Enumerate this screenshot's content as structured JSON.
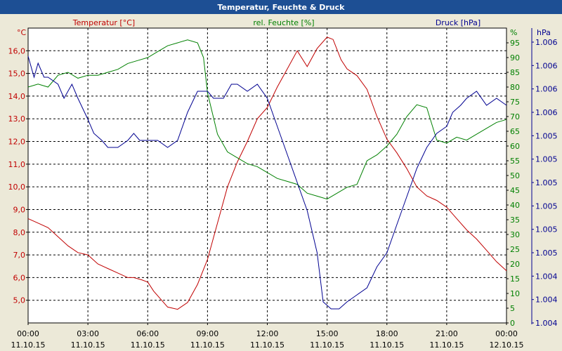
{
  "chart_data": {
    "type": "line",
    "title": "Temperatur, Feuchte & Druck",
    "colors": {
      "temperature": "#c00000",
      "humidity": "#008000",
      "pressure": "#000090",
      "title_bar": "#1d4f94",
      "title_text": "#ffffff",
      "grid": "#000000"
    },
    "grid": true,
    "x_ticks": [
      {
        "time": "00:00",
        "date": "11.10.15"
      },
      {
        "time": "03:00",
        "date": "11.10.15"
      },
      {
        "time": "06:00",
        "date": "11.10.15"
      },
      {
        "time": "09:00",
        "date": "11.10.15"
      },
      {
        "time": "12:00",
        "date": "11.10.15"
      },
      {
        "time": "15:00",
        "date": "11.10.15"
      },
      {
        "time": "18:00",
        "date": "11.10.15"
      },
      {
        "time": "21:00",
        "date": "11.10.15"
      },
      {
        "time": "00:00",
        "date": "12.10.15"
      }
    ],
    "x_range_hours": [
      0,
      24
    ],
    "axes": {
      "temperature": {
        "label": "Temperatur [°C]",
        "unit": "°C",
        "range": [
          4.0,
          17.0
        ],
        "ticks": [
          "16,0",
          "15,0",
          "14,0",
          "13,0",
          "12,0",
          "11,0",
          "10,0",
          "9,0",
          "8,0",
          "7,0",
          "6,0",
          "5,0"
        ],
        "tick_values": [
          16,
          15,
          14,
          13,
          12,
          11,
          10,
          9,
          8,
          7,
          6,
          5
        ]
      },
      "humidity": {
        "label": "rel. Feuchte [%]",
        "unit": "%",
        "range": [
          0,
          100
        ],
        "ticks": [
          "95",
          "90",
          "85",
          "80",
          "75",
          "70",
          "65",
          "60",
          "55",
          "50",
          "45",
          "40",
          "35",
          "30",
          "25",
          "20",
          "15",
          "10",
          "5",
          "0"
        ],
        "tick_values": [
          95,
          90,
          85,
          80,
          75,
          70,
          65,
          60,
          55,
          50,
          45,
          40,
          35,
          30,
          25,
          20,
          15,
          10,
          5,
          0
        ]
      },
      "pressure": {
        "label": "Druck [hPa]",
        "unit": "hPa",
        "ticks": [
          "1.006",
          "1.006",
          "1.006",
          "1.006",
          "1.005",
          "1.005",
          "1.005",
          "1.005",
          "1.005",
          "1.005",
          "1.004",
          "1.004",
          "1.004"
        ]
      }
    },
    "series": [
      {
        "name": "Temperatur [°C]",
        "axis": "temperature",
        "points": [
          [
            0,
            8.6
          ],
          [
            0.5,
            8.4
          ],
          [
            1,
            8.2
          ],
          [
            1.5,
            7.8
          ],
          [
            2,
            7.4
          ],
          [
            2.5,
            7.1
          ],
          [
            3,
            7.0
          ],
          [
            3.5,
            6.6
          ],
          [
            4,
            6.4
          ],
          [
            4.5,
            6.2
          ],
          [
            5,
            6.0
          ],
          [
            5.3,
            6.0
          ],
          [
            5.7,
            5.9
          ],
          [
            6,
            5.8
          ],
          [
            6.3,
            5.4
          ],
          [
            6.7,
            5.0
          ],
          [
            7,
            4.7
          ],
          [
            7.5,
            4.6
          ],
          [
            8,
            4.9
          ],
          [
            8.5,
            5.7
          ],
          [
            9,
            6.8
          ],
          [
            9.5,
            8.4
          ],
          [
            10,
            10.0
          ],
          [
            10.5,
            11.1
          ],
          [
            11,
            12.0
          ],
          [
            11.5,
            13.0
          ],
          [
            12,
            13.5
          ],
          [
            12.5,
            14.4
          ],
          [
            13,
            15.2
          ],
          [
            13.5,
            16.0
          ],
          [
            14,
            15.3
          ],
          [
            14.5,
            16.1
          ],
          [
            15,
            16.6
          ],
          [
            15.3,
            16.5
          ],
          [
            15.7,
            15.6
          ],
          [
            16,
            15.2
          ],
          [
            16.5,
            14.9
          ],
          [
            17,
            14.3
          ],
          [
            17.5,
            13.1
          ],
          [
            18,
            12.1
          ],
          [
            18.5,
            11.5
          ],
          [
            19,
            10.8
          ],
          [
            19.5,
            10.0
          ],
          [
            20,
            9.6
          ],
          [
            20.5,
            9.4
          ],
          [
            21,
            9.1
          ],
          [
            21.5,
            8.6
          ],
          [
            22,
            8.1
          ],
          [
            22.5,
            7.7
          ],
          [
            23,
            7.2
          ],
          [
            23.5,
            6.7
          ],
          [
            24,
            6.3
          ]
        ]
      },
      {
        "name": "rel. Feuchte [%]",
        "axis": "humidity",
        "points": [
          [
            0,
            80
          ],
          [
            0.5,
            81
          ],
          [
            1,
            80
          ],
          [
            1.5,
            84
          ],
          [
            2,
            85
          ],
          [
            2.5,
            83
          ],
          [
            3,
            84
          ],
          [
            3.5,
            84
          ],
          [
            4,
            85
          ],
          [
            4.5,
            86
          ],
          [
            5,
            88
          ],
          [
            5.5,
            89
          ],
          [
            6,
            90
          ],
          [
            6.5,
            92
          ],
          [
            7,
            94
          ],
          [
            7.5,
            95
          ],
          [
            8,
            96
          ],
          [
            8.5,
            95
          ],
          [
            8.8,
            90
          ],
          [
            9,
            78
          ],
          [
            9.5,
            64
          ],
          [
            10,
            58
          ],
          [
            10.5,
            56
          ],
          [
            11,
            54
          ],
          [
            11.5,
            53
          ],
          [
            12,
            51
          ],
          [
            12.5,
            49
          ],
          [
            13,
            48
          ],
          [
            13.5,
            47
          ],
          [
            14,
            44
          ],
          [
            14.5,
            43
          ],
          [
            15,
            42
          ],
          [
            15.5,
            44
          ],
          [
            16,
            46
          ],
          [
            16.5,
            47
          ],
          [
            17,
            55
          ],
          [
            17.5,
            57
          ],
          [
            18,
            60
          ],
          [
            18.5,
            64
          ],
          [
            19,
            70
          ],
          [
            19.5,
            74
          ],
          [
            20,
            73
          ],
          [
            20.5,
            62
          ],
          [
            21,
            61
          ],
          [
            21.5,
            63
          ],
          [
            22,
            62
          ],
          [
            22.5,
            64
          ],
          [
            23,
            66
          ],
          [
            23.5,
            68
          ],
          [
            24,
            69
          ]
        ]
      },
      {
        "name": "Druck [hPa]",
        "axis": "pressure",
        "level_range": [
          0,
          42
        ],
        "points": [
          [
            0,
            38
          ],
          [
            0.3,
            35
          ],
          [
            0.5,
            37
          ],
          [
            0.8,
            35
          ],
          [
            1,
            35
          ],
          [
            1.5,
            34
          ],
          [
            1.8,
            32
          ],
          [
            2.2,
            34
          ],
          [
            2.5,
            32
          ],
          [
            3,
            29
          ],
          [
            3.3,
            27
          ],
          [
            3.7,
            26
          ],
          [
            4,
            25
          ],
          [
            4.5,
            25
          ],
          [
            5,
            26
          ],
          [
            5.3,
            27
          ],
          [
            5.6,
            26
          ],
          [
            6,
            26
          ],
          [
            6.5,
            26
          ],
          [
            7,
            25
          ],
          [
            7.5,
            26
          ],
          [
            8,
            30
          ],
          [
            8.5,
            33
          ],
          [
            9,
            33
          ],
          [
            9.3,
            32
          ],
          [
            9.8,
            32
          ],
          [
            10.2,
            34
          ],
          [
            10.5,
            34
          ],
          [
            11,
            33
          ],
          [
            11.5,
            34
          ],
          [
            12,
            32
          ],
          [
            12.5,
            28
          ],
          [
            13,
            24
          ],
          [
            13.5,
            20
          ],
          [
            14,
            16
          ],
          [
            14.5,
            10
          ],
          [
            14.8,
            3
          ],
          [
            15.2,
            2
          ],
          [
            15.6,
            2
          ],
          [
            16,
            3
          ],
          [
            16.5,
            4
          ],
          [
            17,
            5
          ],
          [
            17.5,
            8
          ],
          [
            18,
            10
          ],
          [
            18.5,
            14
          ],
          [
            19,
            18
          ],
          [
            19.5,
            22
          ],
          [
            20,
            25
          ],
          [
            20.5,
            27
          ],
          [
            21,
            28
          ],
          [
            21.3,
            30
          ],
          [
            21.7,
            31
          ],
          [
            22,
            32
          ],
          [
            22.5,
            33
          ],
          [
            23,
            31
          ],
          [
            23.5,
            32
          ],
          [
            24,
            31
          ]
        ]
      }
    ]
  }
}
